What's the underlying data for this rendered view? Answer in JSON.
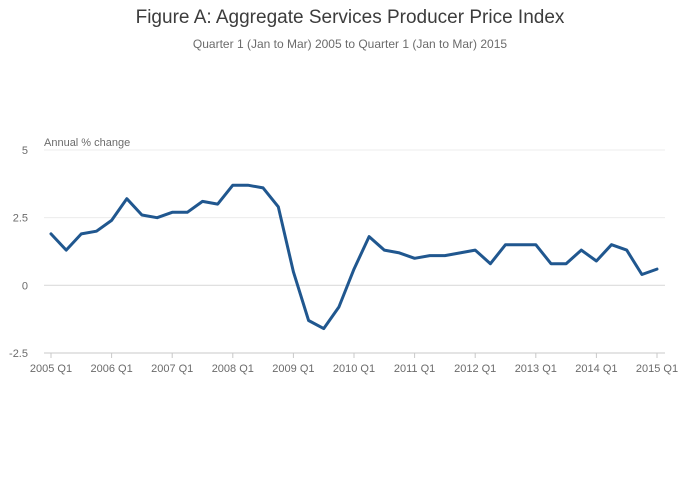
{
  "chart_data": {
    "type": "line",
    "title": "Figure A: Aggregate Services Producer Price Index",
    "subtitle": "Quarter 1 (Jan to Mar) 2005 to Quarter 1 (Jan to Mar) 2015",
    "ylabel": "Annual % change",
    "xlabel": "",
    "ylim": [
      -2.5,
      5
    ],
    "y_ticks": [
      "5",
      "2.5",
      "0",
      "-2.5"
    ],
    "y_tick_values": [
      5,
      2.5,
      0,
      -2.5
    ],
    "grid": true,
    "line_color": "#20578f",
    "x_tick_labels": [
      "2005 Q1",
      "2006 Q1",
      "2007 Q1",
      "2008 Q1",
      "2009 Q1",
      "2010 Q1",
      "2011 Q1",
      "2012 Q1",
      "2013 Q1",
      "2014 Q1",
      "2015 Q1"
    ],
    "x_tick_indices": [
      0,
      4,
      8,
      12,
      16,
      20,
      24,
      28,
      32,
      36,
      40
    ],
    "categories": [
      "2005 Q1",
      "2005 Q2",
      "2005 Q3",
      "2005 Q4",
      "2006 Q1",
      "2006 Q2",
      "2006 Q3",
      "2006 Q4",
      "2007 Q1",
      "2007 Q2",
      "2007 Q3",
      "2007 Q4",
      "2008 Q1",
      "2008 Q2",
      "2008 Q3",
      "2008 Q4",
      "2009 Q1",
      "2009 Q2",
      "2009 Q3",
      "2009 Q4",
      "2010 Q1",
      "2010 Q2",
      "2010 Q3",
      "2010 Q4",
      "2011 Q1",
      "2011 Q2",
      "2011 Q3",
      "2011 Q4",
      "2012 Q1",
      "2012 Q2",
      "2012 Q3",
      "2012 Q4",
      "2013 Q1",
      "2013 Q2",
      "2013 Q3",
      "2013 Q4",
      "2014 Q1",
      "2014 Q2",
      "2014 Q3",
      "2014 Q4",
      "2015 Q1"
    ],
    "values": [
      1.9,
      1.3,
      1.9,
      2.0,
      2.4,
      3.2,
      2.6,
      2.5,
      2.7,
      2.7,
      3.1,
      3.0,
      3.7,
      3.7,
      3.6,
      2.9,
      0.5,
      -1.3,
      -1.6,
      -0.8,
      0.6,
      1.8,
      1.3,
      1.2,
      1.0,
      1.1,
      1.1,
      1.2,
      1.3,
      0.8,
      1.5,
      1.5,
      1.5,
      0.8,
      0.8,
      1.3,
      0.9,
      1.5,
      1.3,
      0.4,
      0.6
    ]
  }
}
